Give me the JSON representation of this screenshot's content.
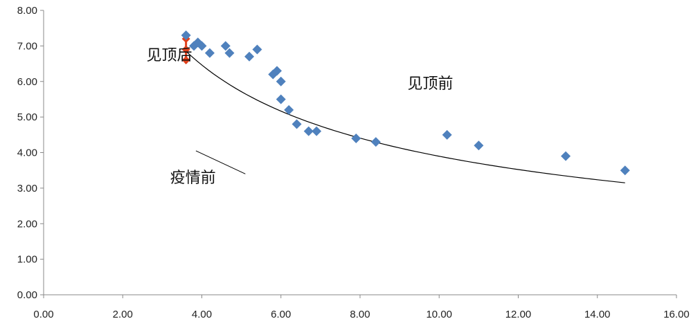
{
  "chart_data": {
    "type": "scatter",
    "xlim": [
      0,
      16
    ],
    "ylim": [
      0,
      8
    ],
    "x_ticks": [
      "0.00",
      "2.00",
      "4.00",
      "6.00",
      "8.00",
      "10.00",
      "12.00",
      "14.00",
      "16.00"
    ],
    "y_ticks": [
      "0.00",
      "1.00",
      "2.00",
      "3.00",
      "4.00",
      "5.00",
      "6.00",
      "7.00",
      "8.00"
    ],
    "grid": false,
    "legend": "none",
    "colors": {
      "points": "#4f81bd",
      "highlight": "#e0401c",
      "trend": "#000000",
      "axis": "#888888"
    },
    "points": [
      {
        "x": 3.6,
        "y": 7.3
      },
      {
        "x": 3.8,
        "y": 7.0
      },
      {
        "x": 3.9,
        "y": 7.1
      },
      {
        "x": 4.0,
        "y": 7.0
      },
      {
        "x": 4.2,
        "y": 6.8
      },
      {
        "x": 4.6,
        "y": 7.0
      },
      {
        "x": 4.7,
        "y": 6.8
      },
      {
        "x": 5.2,
        "y": 6.7
      },
      {
        "x": 5.4,
        "y": 6.9
      },
      {
        "x": 5.8,
        "y": 6.2
      },
      {
        "x": 5.9,
        "y": 6.3
      },
      {
        "x": 6.0,
        "y": 6.0
      },
      {
        "x": 6.0,
        "y": 5.5
      },
      {
        "x": 6.2,
        "y": 5.2
      },
      {
        "x": 6.4,
        "y": 4.8
      },
      {
        "x": 6.7,
        "y": 4.6
      },
      {
        "x": 6.9,
        "y": 4.6
      },
      {
        "x": 7.9,
        "y": 4.4
      },
      {
        "x": 8.4,
        "y": 4.3
      },
      {
        "x": 10.2,
        "y": 4.5
      },
      {
        "x": 11.0,
        "y": 4.2
      },
      {
        "x": 13.2,
        "y": 3.9
      },
      {
        "x": 14.7,
        "y": 3.5
      }
    ],
    "highlight_points": [
      {
        "x": 3.6,
        "y": 7.2
      },
      {
        "x": 3.6,
        "y": 6.9
      },
      {
        "x": 3.6,
        "y": 6.6
      }
    ],
    "highlight_line": {
      "x": 3.6,
      "y_from": 6.5,
      "y_to": 7.3
    },
    "trendline": {
      "x_start": 3.6,
      "x_end": 14.7,
      "y_start": 6.85,
      "y_end": 3.15
    },
    "annotations": [
      {
        "text": "见顶后",
        "x": 2.6,
        "y": 6.6
      },
      {
        "text": "见顶前",
        "x": 9.2,
        "y": 5.8
      },
      {
        "text": "疫情前",
        "x": 3.2,
        "y": 3.15
      }
    ],
    "pointer_line": {
      "x1": 3.85,
      "y1": 4.05,
      "x2": 5.1,
      "y2": 3.4
    }
  }
}
